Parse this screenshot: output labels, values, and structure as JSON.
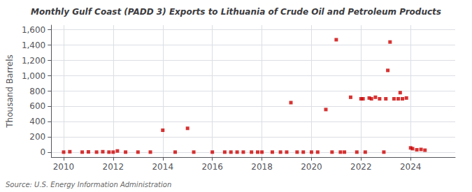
{
  "chart_data": {
    "type": "scatter",
    "title": "Monthly Gulf Coast (PADD 3) Exports to Lithuania of Crude Oil and Petroleum Products",
    "ylabel": "Thousand Barrels",
    "source": "Source: U.S. Energy Information Administration",
    "color": "#cc0000",
    "marker": "square",
    "grid": true,
    "xlim": [
      2009.5,
      2025.8
    ],
    "ylim": [
      -60,
      1660
    ],
    "xticks": [
      2010,
      2012,
      2014,
      2016,
      2018,
      2020,
      2022,
      2024
    ],
    "yticks": [
      0,
      200,
      400,
      600,
      800,
      {
        "value": 1000,
        "label": "1,000"
      },
      {
        "value": 1200,
        "label": "1,200"
      },
      {
        "value": 1400,
        "label": "1,400"
      },
      {
        "value": 1600,
        "label": "1,600"
      }
    ],
    "x": [
      2010.0,
      2010.25,
      2010.75,
      2011.0,
      2011.33,
      2011.58,
      2011.83,
      2012.0,
      2012.17,
      2012.5,
      2013.0,
      2013.5,
      2014.0,
      2014.5,
      2015.0,
      2015.25,
      2016.0,
      2016.5,
      2016.75,
      2017.0,
      2017.25,
      2017.58,
      2017.83,
      2018.0,
      2018.42,
      2018.75,
      2019.0,
      2019.17,
      2019.42,
      2019.67,
      2020.0,
      2020.25,
      2020.58,
      2020.83,
      2021.0,
      2021.17,
      2021.33,
      2021.58,
      2021.83,
      2022.0,
      2022.08,
      2022.17,
      2022.33,
      2022.42,
      2022.58,
      2022.75,
      2022.92,
      2023.0,
      2023.08,
      2023.17,
      2023.33,
      2023.5,
      2023.58,
      2023.67,
      2023.83,
      2024.0,
      2024.08,
      2024.25,
      2024.42,
      2024.58
    ],
    "values": [
      5,
      10,
      5,
      8,
      5,
      10,
      5,
      5,
      20,
      5,
      5,
      5,
      290,
      5,
      315,
      5,
      5,
      5,
      5,
      5,
      5,
      5,
      5,
      5,
      5,
      5,
      5,
      650,
      5,
      5,
      5,
      5,
      560,
      5,
      1470,
      5,
      5,
      720,
      5,
      700,
      700,
      5,
      710,
      700,
      720,
      700,
      5,
      700,
      1070,
      1440,
      700,
      700,
      780,
      700,
      710,
      60,
      50,
      35,
      40,
      30
    ]
  }
}
